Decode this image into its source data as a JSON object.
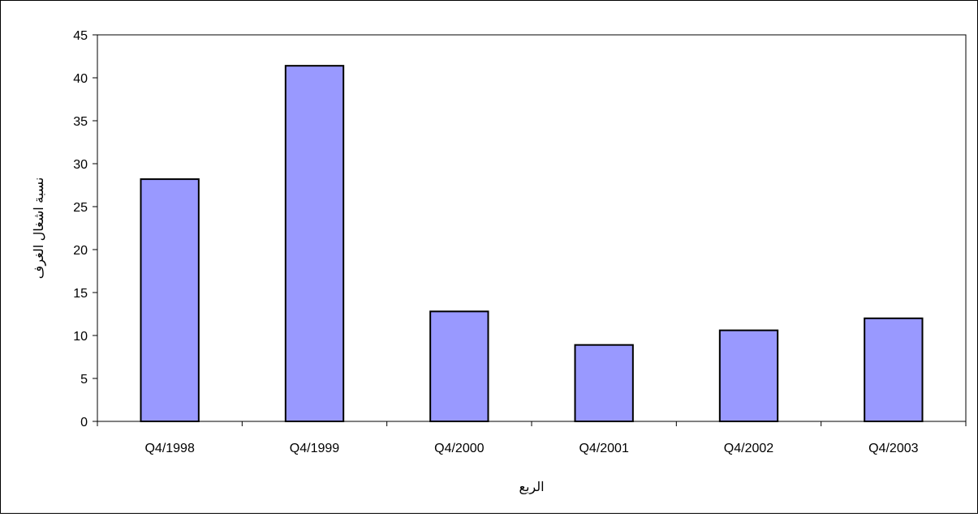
{
  "chart_data": {
    "type": "bar",
    "title": "",
    "xlabel": "الربع",
    "ylabel": "نسبة اشغال الغرف",
    "categories": [
      "Q4/1998",
      "Q4/1999",
      "Q4/2000",
      "Q4/2001",
      "Q4/2002",
      "Q4/2003"
    ],
    "values": [
      28.2,
      41.4,
      12.8,
      8.9,
      10.6,
      12.0
    ],
    "ylim": [
      0,
      45
    ],
    "yticks": [
      "0",
      "5",
      "10",
      "15",
      "20",
      "25",
      "30",
      "35",
      "40",
      "45"
    ],
    "grid": false,
    "legend": "none",
    "bar_color": "#9999ff",
    "bar_edge_color": "#000000"
  }
}
